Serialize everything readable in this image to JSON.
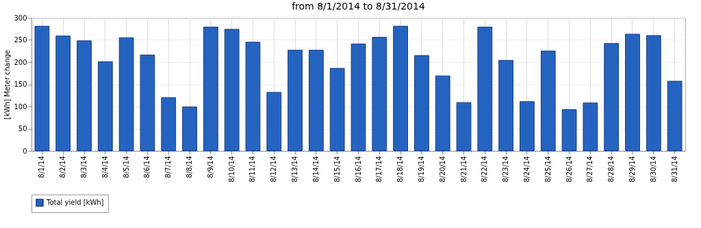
{
  "chart_data": {
    "type": "bar",
    "title": "from 8/1/2014 to 8/31/2014",
    "ylabel": "[kWh] Meter change",
    "categories": [
      "8/1/14",
      "8/2/14",
      "8/3/14",
      "8/4/14",
      "8/5/14",
      "8/6/14",
      "8/7/14",
      "8/8/14",
      "8/9/14",
      "8/10/14",
      "8/11/14",
      "8/12/14",
      "8/13/14",
      "8/14/14",
      "8/15/14",
      "8/16/14",
      "8/17/14",
      "8/18/14",
      "8/19/14",
      "8/20/14",
      "8/21/14",
      "8/22/14",
      "8/23/14",
      "8/24/14",
      "8/25/14",
      "8/26/14",
      "8/27/14",
      "8/28/14",
      "8/29/14",
      "8/30/14",
      "8/31/14"
    ],
    "series": [
      {
        "name": "Total yield [kWh]",
        "color": "#2563c0",
        "values": [
          281,
          259,
          248,
          201,
          255,
          216,
          120,
          99,
          279,
          274,
          245,
          132,
          227,
          227,
          186,
          241,
          256,
          281,
          215,
          169,
          109,
          279,
          204,
          111,
          225,
          93,
          108,
          242,
          263,
          260,
          157
        ]
      }
    ],
    "ylim": [
      0,
      300
    ],
    "yticks": [
      0,
      50,
      100,
      150,
      200,
      250,
      300
    ],
    "grid": true,
    "legend": "bottom"
  }
}
